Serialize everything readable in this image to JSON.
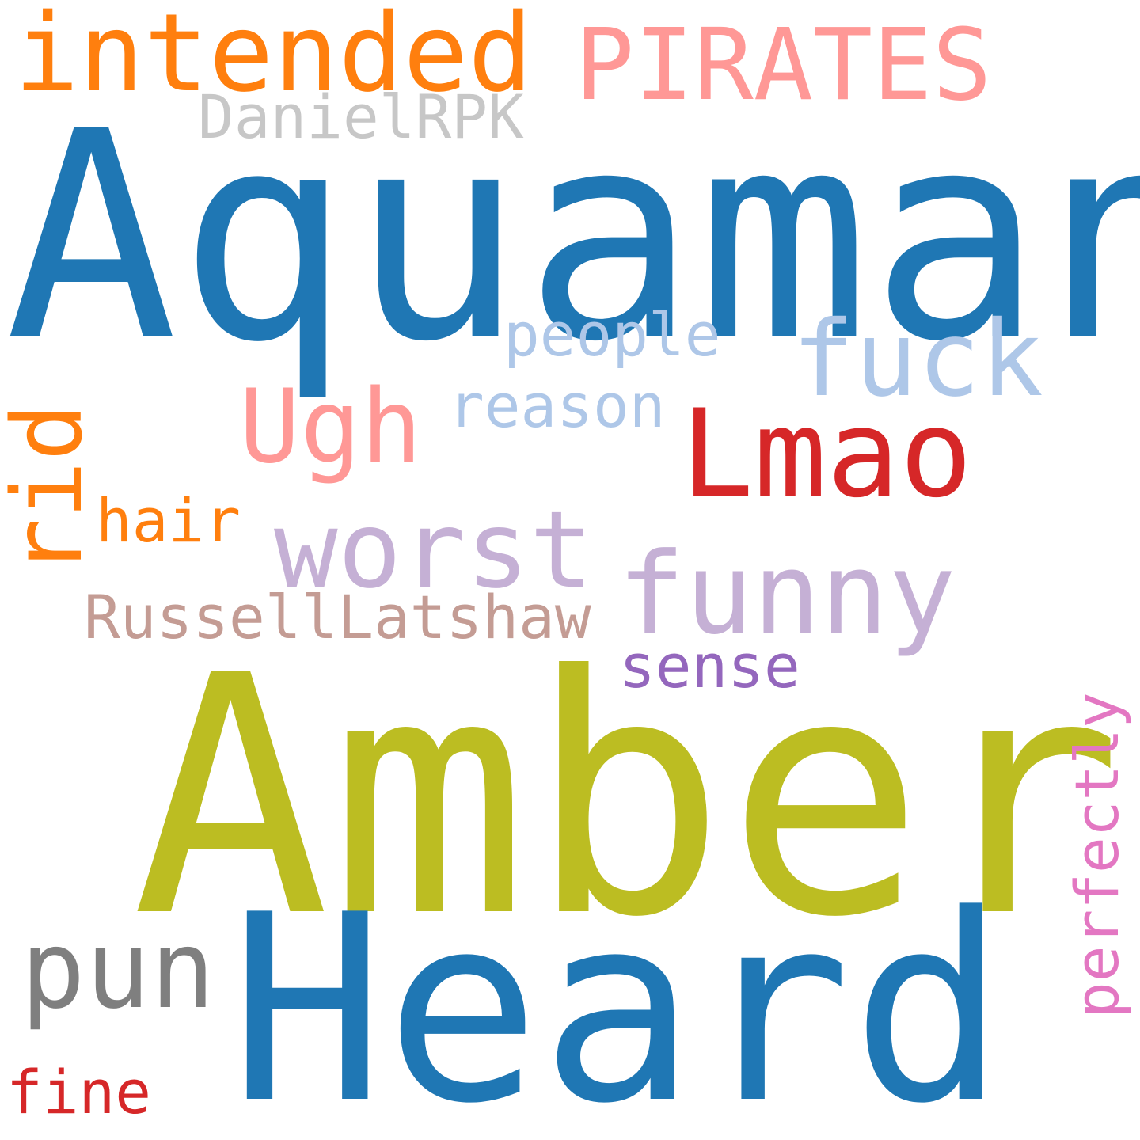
{
  "words": [
    {
      "text": "Aquaman",
      "color": "#1f77b4"
    },
    {
      "text": "Amber",
      "color": "#bcbd22"
    },
    {
      "text": "Heard",
      "color": "#1f77b4"
    },
    {
      "text": "intended",
      "color": "#ff7f0e"
    },
    {
      "text": "PIRATES",
      "color": "#ff9896"
    },
    {
      "text": "DanielRPK",
      "color": "#c7c7c7"
    },
    {
      "text": "fuck",
      "color": "#aec7e8"
    },
    {
      "text": "people",
      "color": "#aec7e8"
    },
    {
      "text": "reason",
      "color": "#aec7e8"
    },
    {
      "text": "Ugh",
      "color": "#ff9896"
    },
    {
      "text": "Lmao",
      "color": "#d62728"
    },
    {
      "text": "rid",
      "color": "#ff7f0e"
    },
    {
      "text": "hair",
      "color": "#ff7f0e"
    },
    {
      "text": "worst",
      "color": "#c5b0d5"
    },
    {
      "text": "funny",
      "color": "#c5b0d5"
    },
    {
      "text": "RussellLatshaw",
      "color": "#c49c94"
    },
    {
      "text": "sense",
      "color": "#9467bd"
    },
    {
      "text": "perfectly",
      "color": "#e377c2"
    },
    {
      "text": "pun",
      "color": "#7f7f7f"
    },
    {
      "text": "fine",
      "color": "#d62728"
    }
  ]
}
